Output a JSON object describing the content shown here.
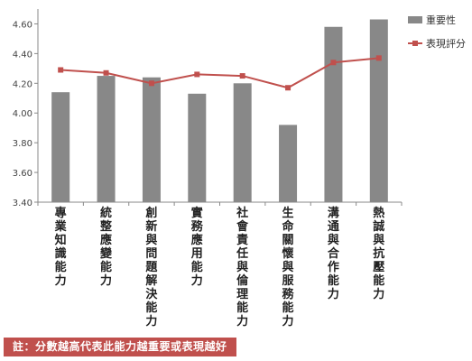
{
  "chart_data": {
    "type": "bar",
    "categories": [
      "專業知識能力",
      "統整應變能力",
      "創新與問題解決能力",
      "實務應用能力",
      "社會責任與倫理能力",
      "生命關懷與服務能力",
      "溝通與合作能力",
      "熱誠與抗壓能力"
    ],
    "series": [
      {
        "name": "重要性",
        "type": "bar",
        "color": "#888888",
        "values": [
          4.14,
          4.25,
          4.24,
          4.13,
          4.2,
          3.92,
          4.58,
          4.63
        ]
      },
      {
        "name": "表現評分",
        "type": "line",
        "color": "#c0504d",
        "values": [
          4.29,
          4.27,
          4.2,
          4.26,
          4.25,
          4.17,
          4.34,
          4.37
        ]
      }
    ],
    "y_ticks": [
      "3.40",
      "3.60",
      "3.80",
      "4.00",
      "4.20",
      "4.40",
      "4.60"
    ],
    "ylim": [
      3.4,
      4.7
    ],
    "grid": false,
    "legend_position": "top-right"
  },
  "note": "註：分數越高代表此能力越重要或表現越好"
}
